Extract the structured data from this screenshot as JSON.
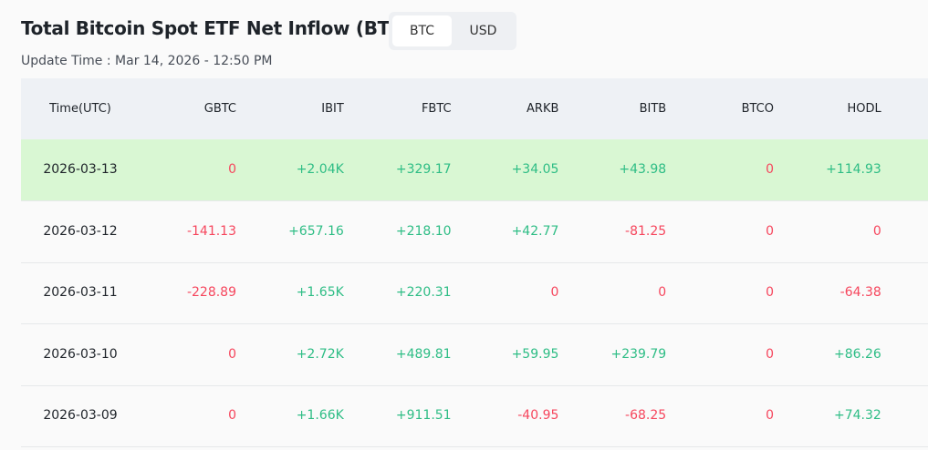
{
  "header": {
    "title": "Total Bitcoin Spot ETF Net Inflow (BTC)",
    "tabs": [
      "BTC",
      "USD"
    ],
    "update_time": "Update Time : Mar 14, 2026 - 12:50 PM"
  },
  "table": {
    "columns": [
      "Time(UTC)",
      "GBTC",
      "IBIT",
      "FBTC",
      "ARKB",
      "BITB",
      "BTCO",
      "HODL"
    ],
    "rows": [
      [
        "2026-03-13",
        "0",
        "+2.04K",
        "+329.17",
        "+34.05",
        "+43.98",
        "0",
        "+114.93"
      ],
      [
        "2026-03-12",
        "-141.13",
        "+657.16",
        "+218.10",
        "+42.77",
        "-81.25",
        "0",
        "0"
      ],
      [
        "2026-03-11",
        "-228.89",
        "+1.65K",
        "+220.31",
        "0",
        "0",
        "0",
        "-64.38"
      ],
      [
        "2026-03-10",
        "0",
        "+2.72K",
        "+489.81",
        "+59.95",
        "+239.79",
        "0",
        "+86.26"
      ],
      [
        "2026-03-09",
        "0",
        "+1.66K",
        "+911.51",
        "-40.95",
        "-68.25",
        "0",
        "+74.32"
      ]
    ]
  }
}
